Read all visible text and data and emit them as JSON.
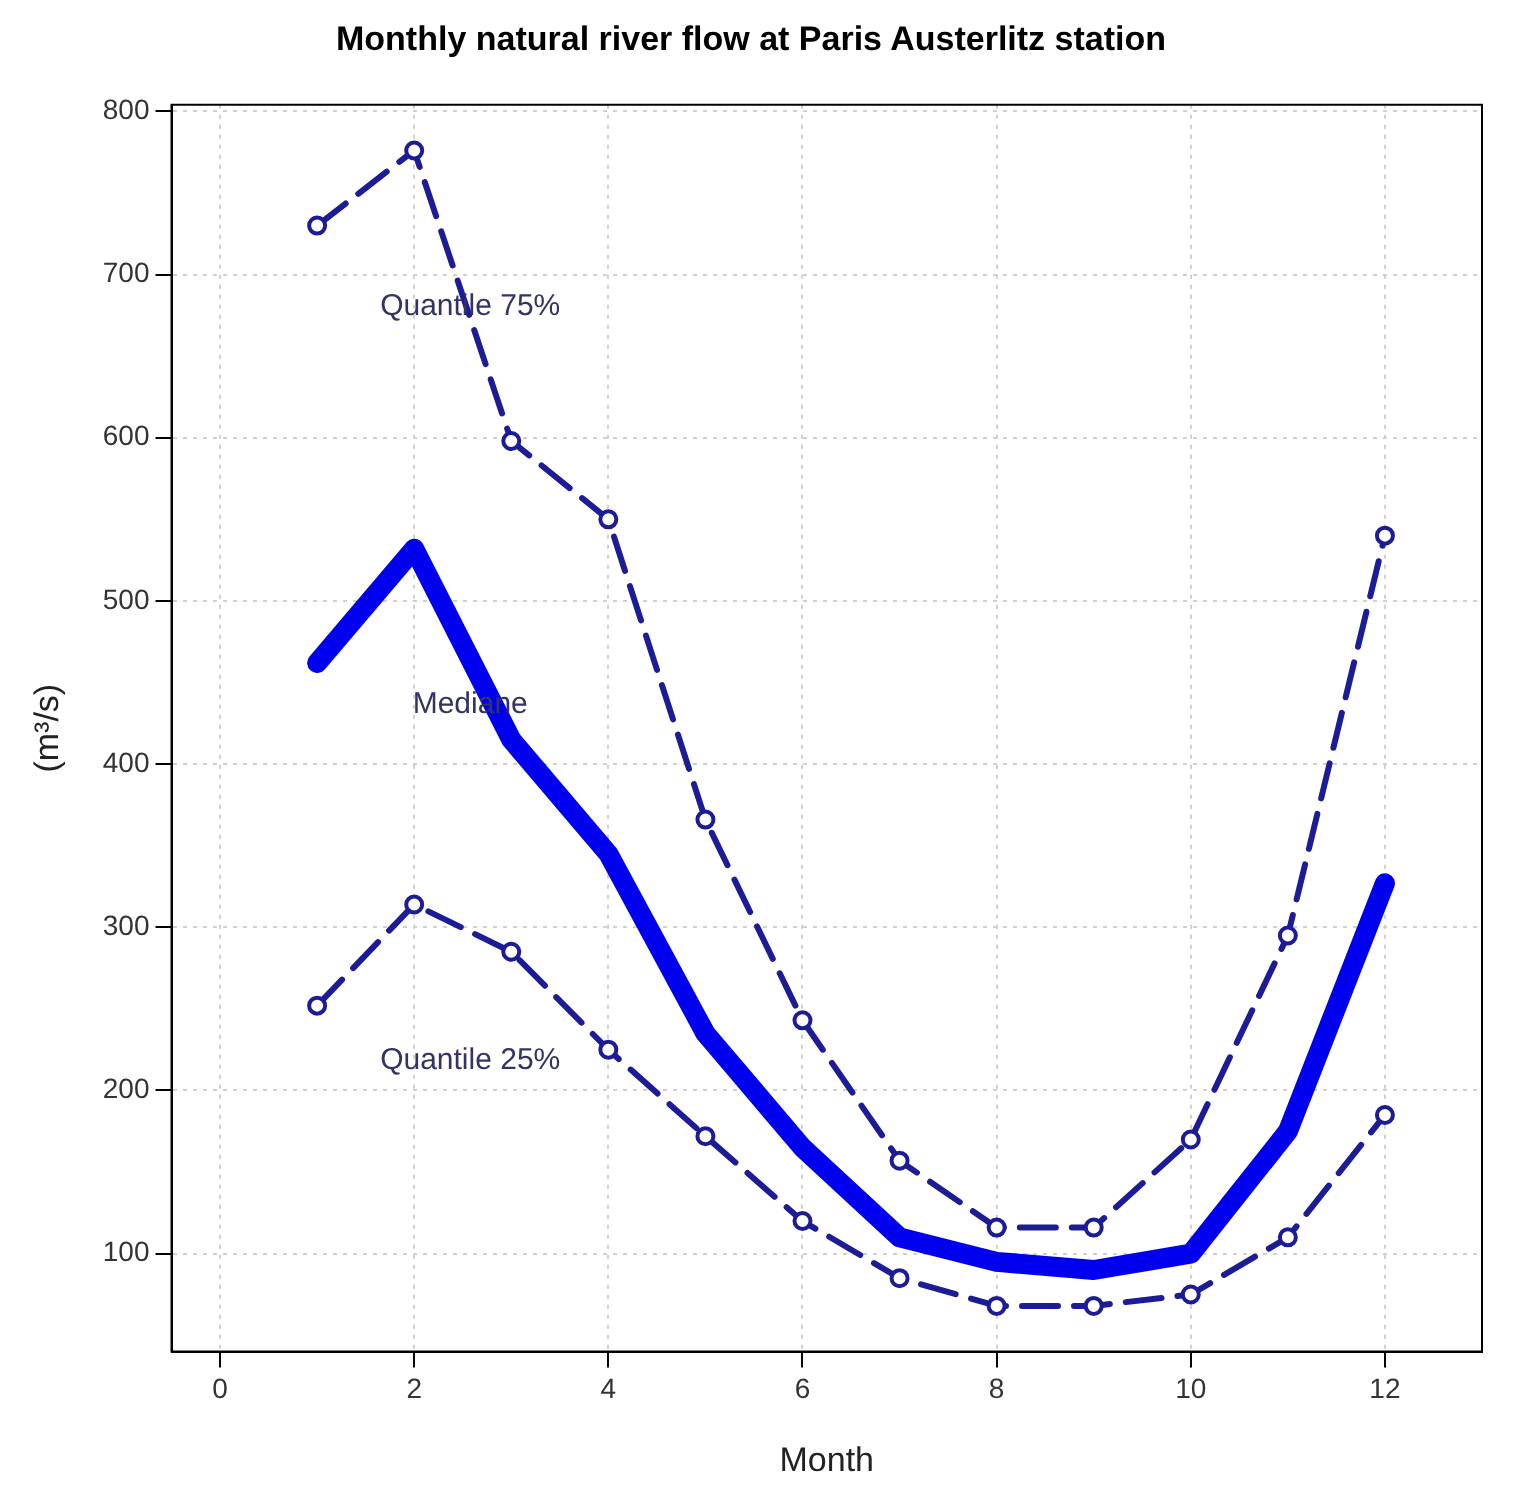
{
  "chart_data": {
    "type": "line",
    "title": "Monthly natural river flow at Paris Austerlitz station",
    "xlabel": "Month",
    "ylabel": "(m³/s)",
    "x": [
      1,
      2,
      3,
      4,
      5,
      6,
      7,
      8,
      9,
      10,
      11,
      12
    ],
    "series": [
      {
        "name": "Quantile 75%",
        "color": "#1c1c96",
        "marker": "circle",
        "line_style": "dashed",
        "values": [
          730,
          776,
          598,
          550,
          366,
          243,
          157,
          116,
          116,
          170,
          295,
          540
        ]
      },
      {
        "name": "Mediane",
        "color": "#0000ee",
        "marker": "none",
        "line_style": "solid",
        "values": [
          462,
          532,
          415,
          345,
          235,
          165,
          110,
          95,
          90,
          100,
          175,
          327
        ]
      },
      {
        "name": "Quantile 25%",
        "color": "#1c1c96",
        "marker": "circle",
        "line_style": "dashed",
        "values": [
          252,
          314,
          285,
          225,
          172,
          120,
          85,
          68,
          68,
          75,
          110,
          185
        ]
      }
    ],
    "xlim": [
      -0.5,
      13
    ],
    "xticks": [
      0,
      2,
      4,
      6,
      8,
      10,
      12
    ],
    "ylim": [
      40,
      804
    ],
    "yticks": [
      100,
      200,
      300,
      400,
      500,
      600,
      700,
      800
    ],
    "grid": true,
    "legend": false
  }
}
